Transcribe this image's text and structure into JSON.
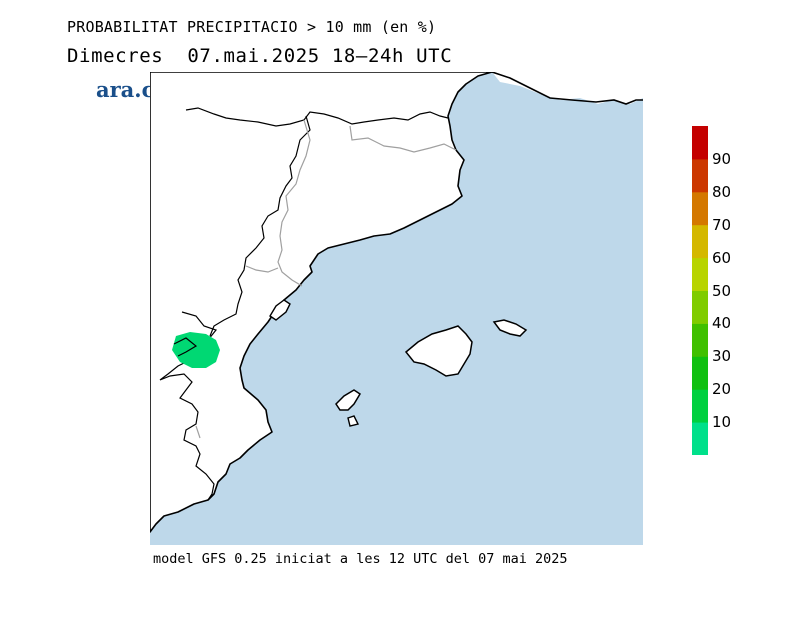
{
  "header": {
    "product_title": "PROBABILITAT PRECIPITACIO > 10 mm (en %)",
    "run_date": "Dimecres  07.mai.2025 18—24h UTC"
  },
  "logo": {
    "text": "ara.cat",
    "color": "#1a4f8a"
  },
  "footer": {
    "text": "model GFS 0.25 iniciat a les 12 UTC del 07 mai 2025"
  },
  "map": {
    "sea_color": "#bed8ea",
    "land_color": "#ffffff",
    "coast_color": "#000000",
    "border_color": "#a0a0a0",
    "precip_area": {
      "probability_class": "10-20",
      "color": "#00d873"
    }
  },
  "colorbar": {
    "labels": [
      "10",
      "20",
      "30",
      "40",
      "50",
      "60",
      "70",
      "80",
      "90"
    ],
    "colors": [
      "#00e08a",
      "#00d040",
      "#10c010",
      "#40c000",
      "#80cc00",
      "#b8d400",
      "#d4b800",
      "#d47800",
      "#cc3800",
      "#c40000"
    ]
  }
}
